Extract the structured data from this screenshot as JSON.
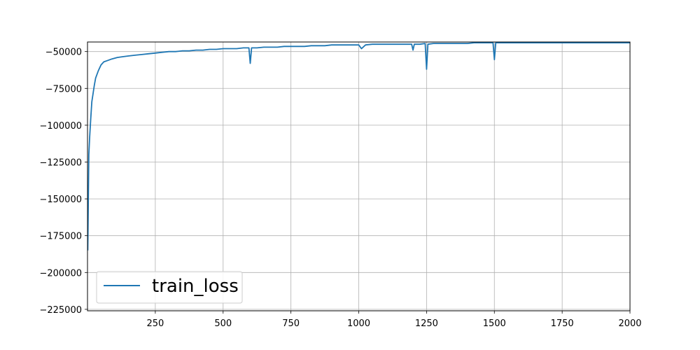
{
  "chart_data": {
    "type": "line",
    "title": "",
    "xlabel": "",
    "ylabel": "",
    "xlim": [
      0,
      2000
    ],
    "ylim": [
      -226000,
      -43500
    ],
    "xticks": [
      250,
      500,
      750,
      1000,
      1250,
      1500,
      1750,
      2000
    ],
    "xtick_labels": [
      "250",
      "500",
      "750",
      "1000",
      "1250",
      "1500",
      "1750",
      "2000"
    ],
    "yticks": [
      -50000,
      -75000,
      -100000,
      -125000,
      -150000,
      -175000,
      -200000,
      -225000
    ],
    "ytick_labels": [
      "−50000",
      "−75000",
      "−100000",
      "−125000",
      "−150000",
      "−175000",
      "−200000",
      "−225000"
    ],
    "grid": true,
    "legend_position": "lower-left",
    "colors": {
      "series": "#1f77b4",
      "grid": "#b0b0b0",
      "axes": "#000000"
    },
    "series": [
      {
        "name": "train_loss",
        "x": [
          1,
          3,
          5,
          8,
          12,
          16,
          20,
          25,
          30,
          40,
          50,
          60,
          75,
          90,
          110,
          130,
          150,
          175,
          200,
          225,
          250,
          275,
          300,
          325,
          350,
          375,
          400,
          425,
          450,
          475,
          500,
          525,
          550,
          575,
          595,
          600,
          605,
          625,
          650,
          675,
          700,
          725,
          750,
          775,
          800,
          825,
          850,
          875,
          900,
          925,
          950,
          975,
          1000,
          1010,
          1025,
          1050,
          1075,
          1100,
          1125,
          1150,
          1175,
          1195,
          1200,
          1205,
          1225,
          1245,
          1250,
          1255,
          1275,
          1300,
          1325,
          1350,
          1375,
          1400,
          1425,
          1450,
          1475,
          1495,
          1500,
          1505,
          1525,
          1550,
          1575,
          1600,
          1625,
          1650,
          1675,
          1700,
          1725,
          1750,
          1775,
          1800,
          1825,
          1850,
          1875,
          1900,
          1925,
          1950,
          1975,
          2000
        ],
        "values": [
          -185000,
          -150000,
          -120000,
          -108000,
          -95000,
          -84000,
          -79000,
          -73000,
          -68000,
          -63000,
          -59000,
          -57000,
          -56000,
          -55000,
          -54000,
          -53500,
          -53000,
          -52500,
          -52000,
          -51500,
          -51000,
          -50500,
          -50000,
          -50000,
          -49500,
          -49500,
          -49000,
          -49000,
          -48500,
          -48500,
          -48000,
          -48000,
          -48000,
          -47500,
          -47500,
          -58000,
          -47500,
          -47500,
          -47000,
          -47000,
          -47000,
          -46500,
          -46500,
          -46500,
          -46500,
          -46000,
          -46000,
          -46000,
          -45500,
          -45500,
          -45500,
          -45500,
          -45500,
          -48000,
          -45500,
          -45000,
          -45000,
          -45000,
          -45000,
          -45000,
          -45000,
          -45000,
          -49000,
          -45000,
          -45000,
          -44500,
          -62000,
          -45000,
          -44500,
          -44500,
          -44500,
          -44500,
          -44500,
          -44500,
          -44000,
          -44000,
          -44000,
          -44000,
          -55500,
          -44000,
          -44000,
          -44000,
          -44000,
          -44000,
          -44000,
          -44000,
          -44000,
          -44000,
          -44000,
          -44000,
          -44000,
          -44000,
          -44000,
          -44000,
          -44000,
          -44000,
          -44000,
          -44000,
          -44000,
          -44000
        ]
      }
    ]
  }
}
